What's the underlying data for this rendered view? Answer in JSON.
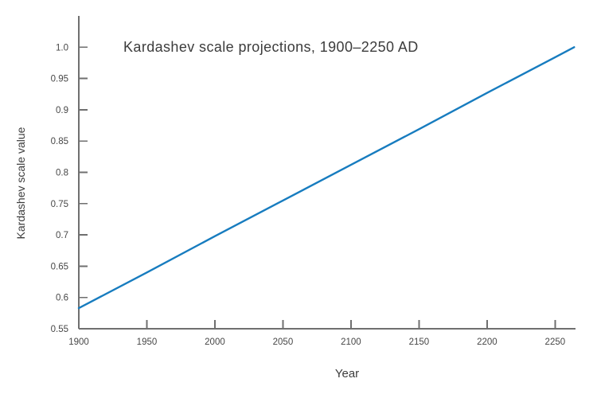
{
  "chart_data": {
    "type": "line",
    "title": "Kardashev scale projections, 1900–2250 AD",
    "xlabel": "Year",
    "ylabel": "Kardashev scale value",
    "xlim": [
      1900,
      2265
    ],
    "ylim": [
      0.55,
      1.05
    ],
    "grid": false,
    "legend": false,
    "x_ticks": [
      1900,
      1950,
      2000,
      2050,
      2100,
      2150,
      2200,
      2250
    ],
    "x_tick_labels": [
      "1900",
      "1950",
      "2000",
      "2050",
      "2100",
      "2150",
      "2200",
      "2250"
    ],
    "y_ticks": [
      0.55,
      0.6,
      0.65,
      0.7,
      0.75,
      0.8,
      0.85,
      0.9,
      0.95,
      1.0
    ],
    "y_tick_labels": [
      "0.55",
      "0.6",
      "0.65",
      "0.7",
      "0.75",
      "0.8",
      "0.85",
      "0.9",
      "0.95",
      "1.0"
    ],
    "series": [
      {
        "name": "Kardashev scale projection",
        "color": "#177cbf",
        "x": [
          1900,
          1950,
          2000,
          2050,
          2100,
          2150,
          2200,
          2250,
          2264
        ],
        "y": [
          0.583,
          0.64,
          0.698,
          0.755,
          0.812,
          0.869,
          0.927,
          0.984,
          1.0
        ]
      }
    ]
  },
  "style": {
    "background": "#ffffff",
    "axis_color": "#6f6f6f",
    "tick_color": "#6f6f6f",
    "text_color": "#3e3e3e",
    "line_color": "#177cbf"
  }
}
